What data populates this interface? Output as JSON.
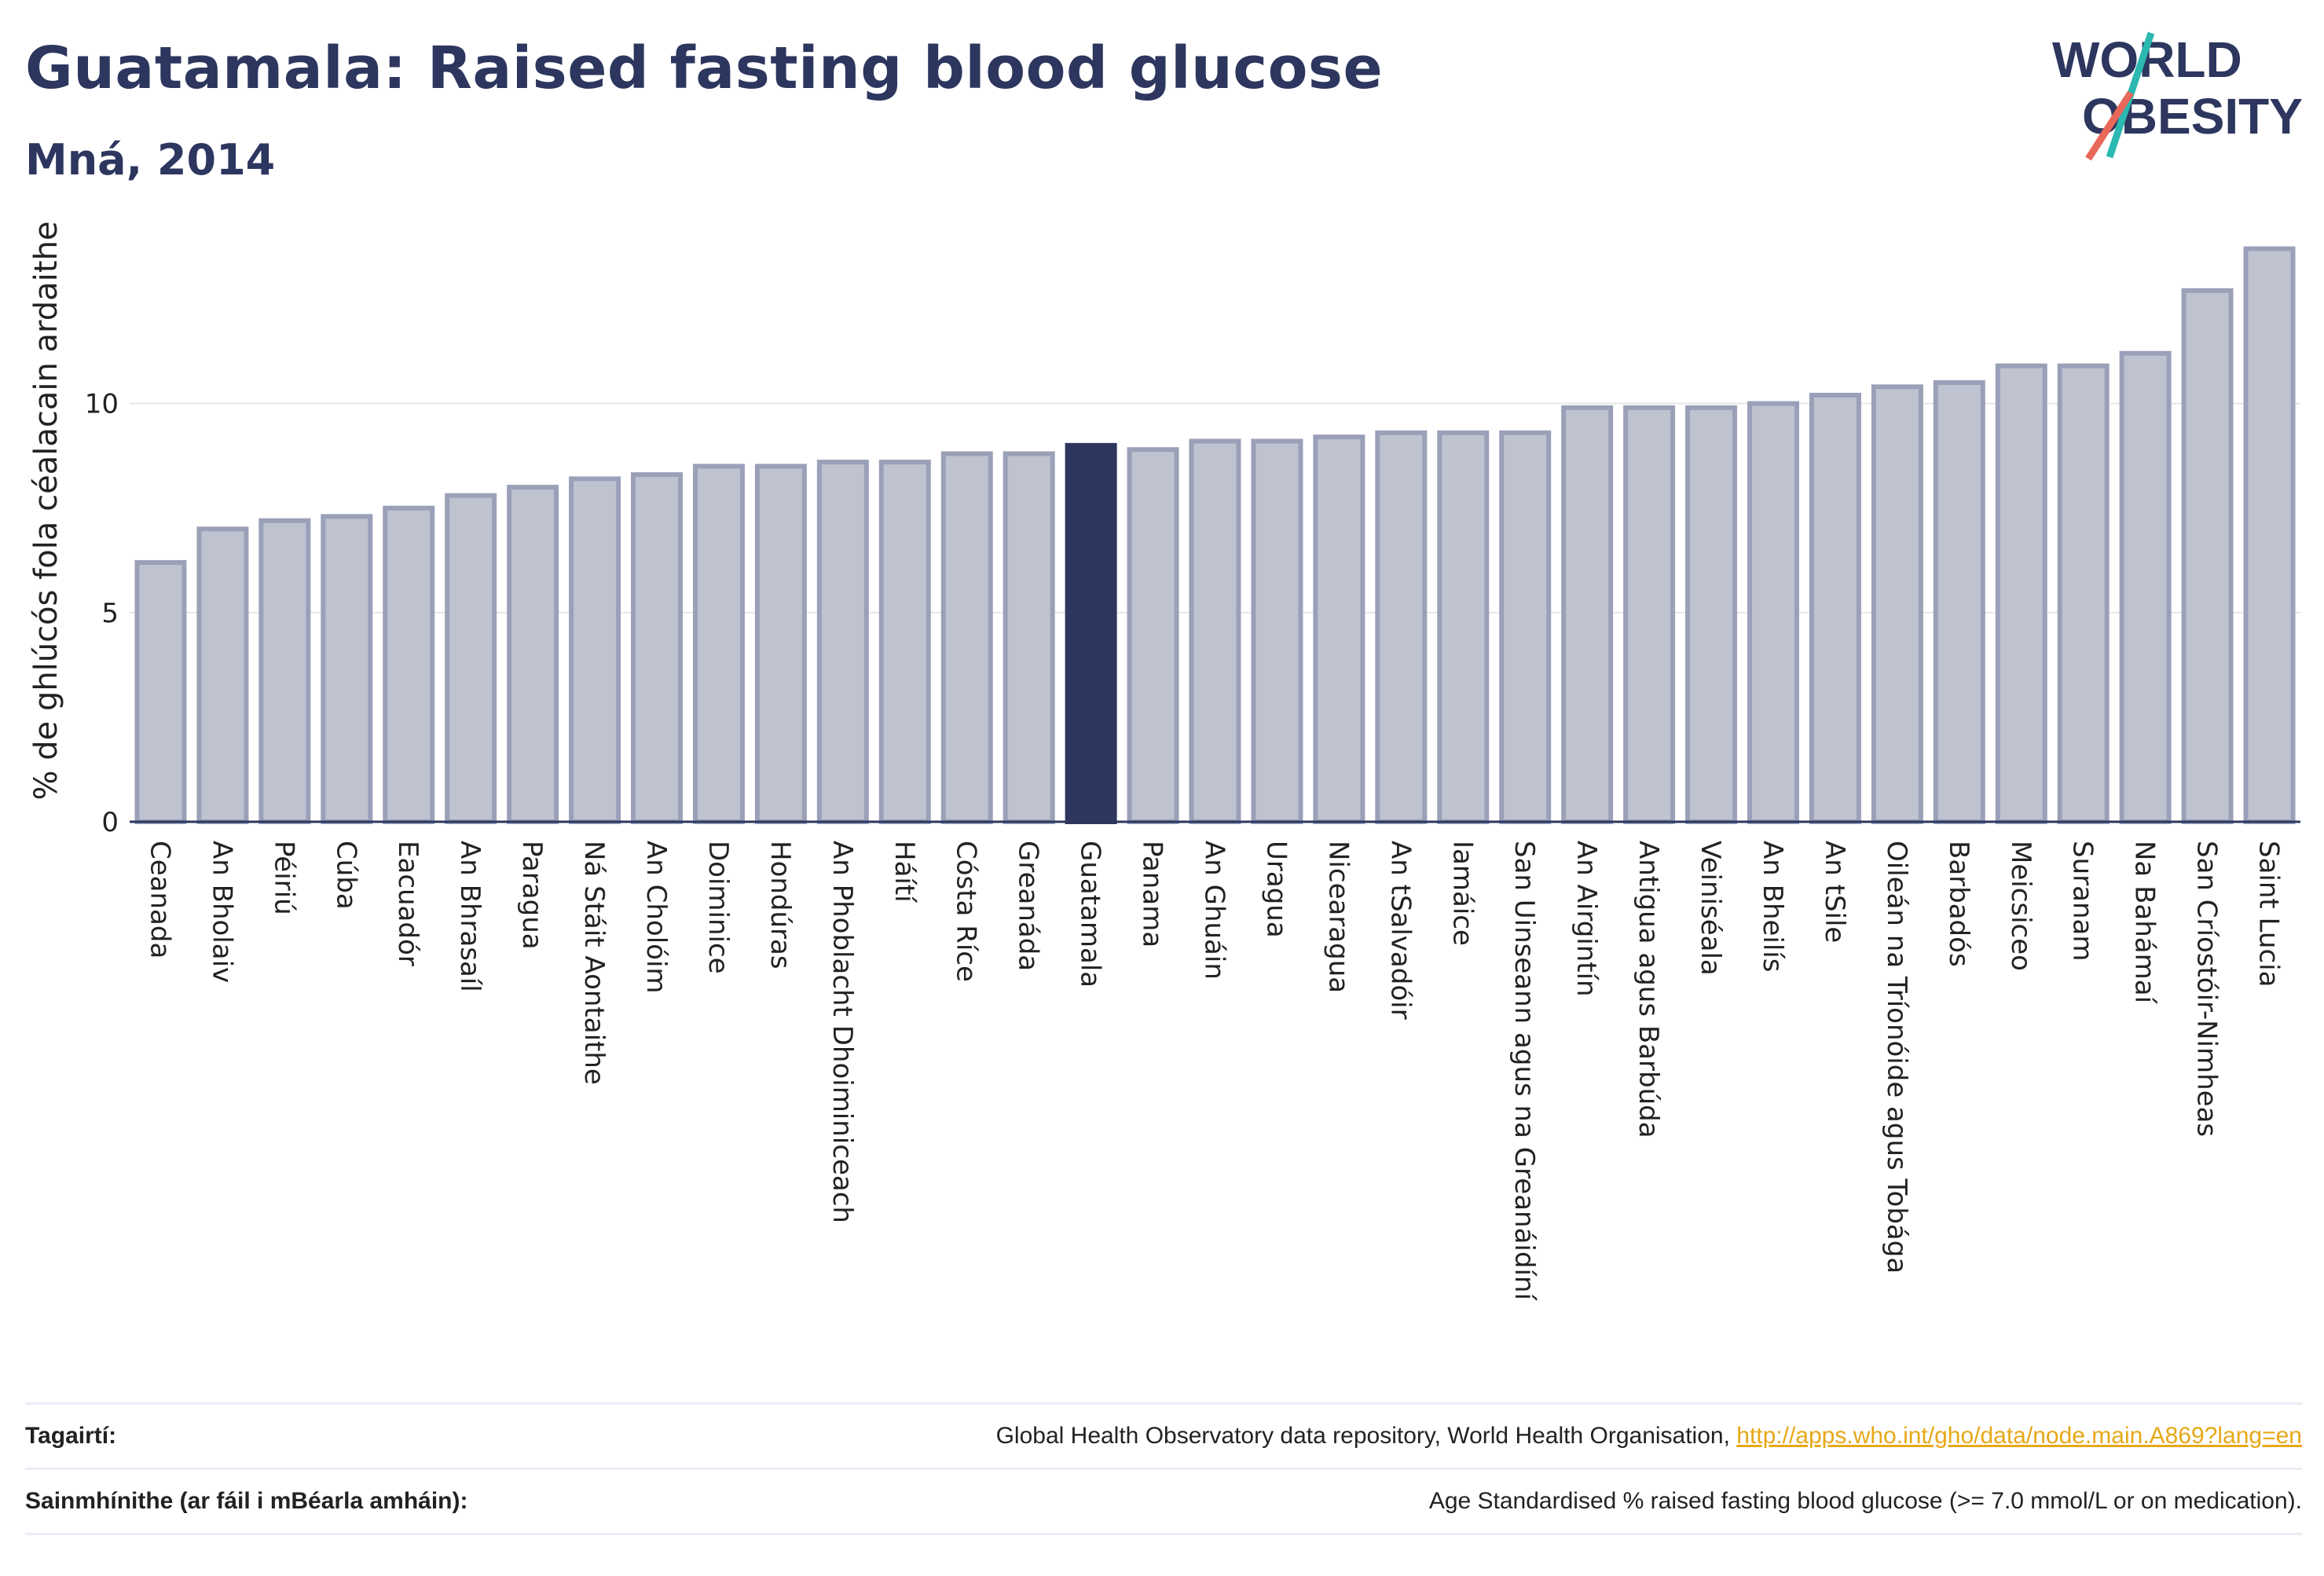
{
  "title": "Guatamala: Raised fasting blood glucose",
  "subtitle": "Mná, 2014",
  "logo": {
    "line1": "WORLD",
    "line2": "OBESITY"
  },
  "chart_data": {
    "type": "bar",
    "ylabel": "% de ghlúcós fola céalacain ardaithe",
    "ylim": [
      0,
      14.2
    ],
    "yticks": [
      0,
      5,
      10
    ],
    "highlight": "Guatamala",
    "colors": {
      "bar": "#bfc3d0",
      "bar_border": "#9aa0b8",
      "highlight": "#2c365e",
      "grid": "#e6e6e6",
      "axis": "#2c365e"
    },
    "categories": [
      "Ceanada",
      "An Bholaiv",
      "Péiriú",
      "Cúba",
      "Eacuadór",
      "An Bhrasaíl",
      "Paragua",
      "Ná Stáit Aontaithe",
      "An Cholóim",
      "Doiminice",
      "Hondúras",
      "An Phoblacht Dhoiminiceach",
      "Háítí",
      "Cósta Ríce",
      "Greanáda",
      "Guatamala",
      "Panama",
      "An Ghuáin",
      "Uragua",
      "Nicearagua",
      "An tSalvadóir",
      "Iamáice",
      "San Uinseann agus na Greanáidíní",
      "An Airgintín",
      "Antigua agus Barbúda",
      "Veiniséala",
      "An Bheilís",
      "An tSile",
      "Oileán na Tríonóide agus Tobága",
      "Barbadós",
      "Meicsiceo",
      "Suranam",
      "Na Bahámaí",
      "San Críostóir-Nimheas",
      "Saint Lucia"
    ],
    "values": [
      6.2,
      7.0,
      7.2,
      7.3,
      7.5,
      7.8,
      8.0,
      8.2,
      8.3,
      8.5,
      8.5,
      8.6,
      8.6,
      8.8,
      8.8,
      9.0,
      8.9,
      9.1,
      9.1,
      9.2,
      9.3,
      9.3,
      9.3,
      9.9,
      9.9,
      9.9,
      10.0,
      10.2,
      10.4,
      10.5,
      10.9,
      10.9,
      11.2,
      12.7,
      13.7
    ]
  },
  "references": {
    "sources_label": "Tagairtí:",
    "sources_text": "Global Health Observatory data repository, World Health Organisation, ",
    "sources_link": "http://apps.who.int/gho/data/node.main.A869?lang=en",
    "definitions_label": "Sainmhínithe (ar fáil i mBéarla amháin):",
    "definitions_text": "Age Standardised % raised fasting blood glucose (>= 7.0 mmol/L or on medication)."
  }
}
